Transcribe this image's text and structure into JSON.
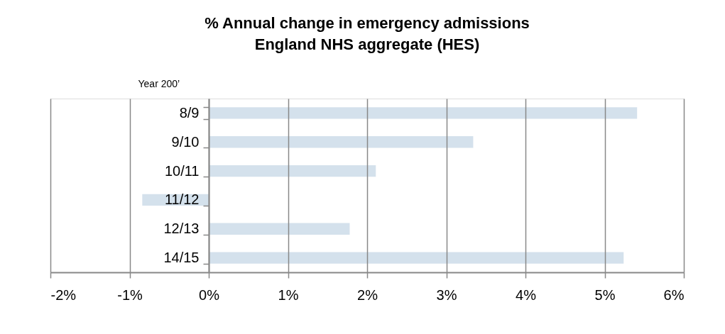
{
  "chart_data": {
    "type": "bar",
    "orientation": "horizontal",
    "title": "% Annual change in emergency admissions\nEngland NHS aggregate (HES)",
    "ylabel": "Year 200’",
    "categories": [
      "8/9",
      "9/10",
      "10/11",
      "11/12",
      "12/13",
      "14/15"
    ],
    "values": [
      5.41,
      3.34,
      2.11,
      -0.84,
      1.78,
      5.24
    ],
    "color": "#d4e1ec",
    "xlim": [
      -2,
      6
    ],
    "xticks": [
      {
        "value": -2,
        "label": "-2%"
      },
      {
        "value": -1,
        "label": "-1%"
      },
      {
        "value": 0,
        "label": "0%"
      },
      {
        "value": 1,
        "label": "1%"
      },
      {
        "value": 2,
        "label": "2%"
      },
      {
        "value": 3,
        "label": "3%"
      },
      {
        "value": 4,
        "label": "4%"
      },
      {
        "value": 5,
        "label": "5%"
      },
      {
        "value": 6,
        "label": "6%"
      }
    ],
    "grid": "x"
  }
}
